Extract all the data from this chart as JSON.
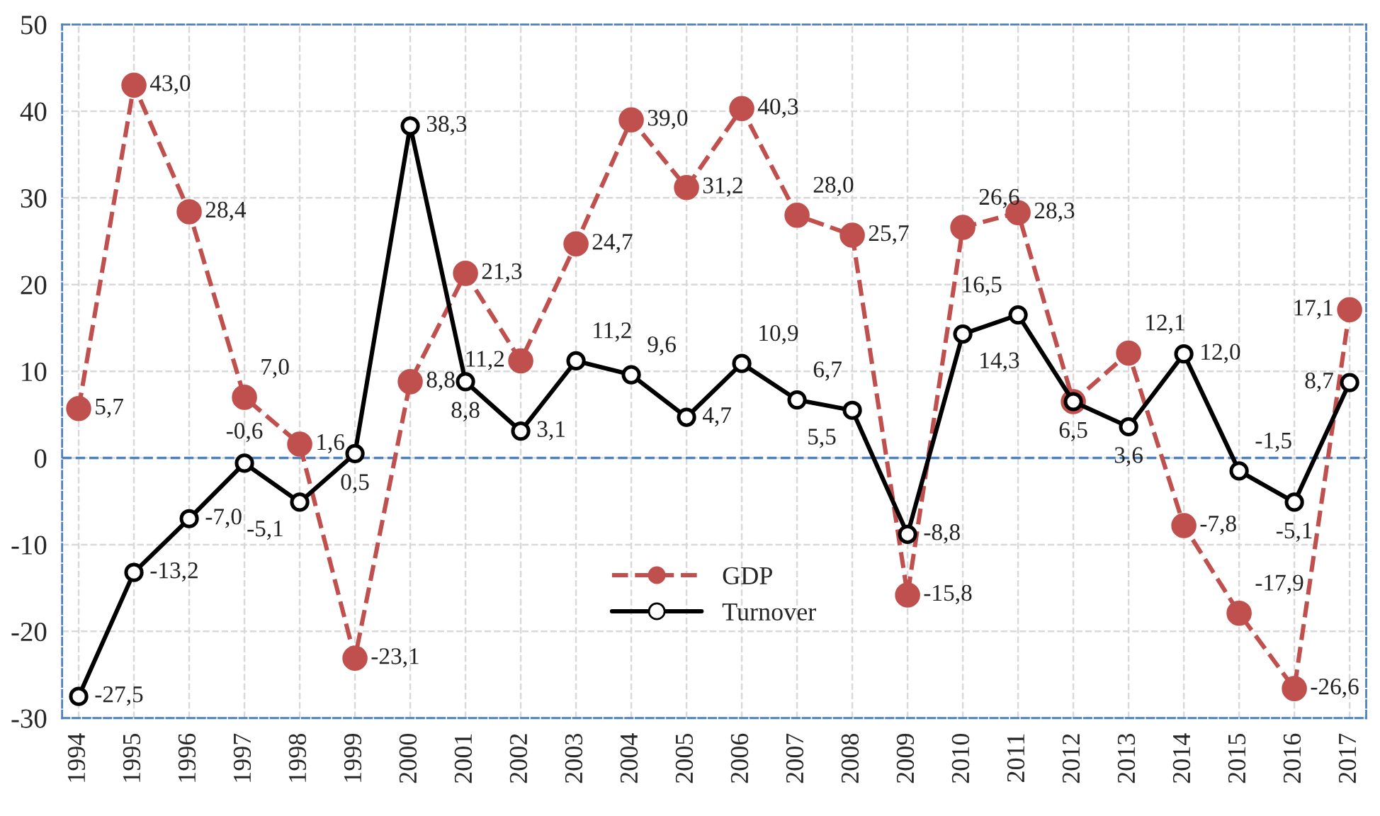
{
  "chart_data": {
    "type": "line",
    "categories": [
      "1994",
      "1995",
      "1996",
      "1997",
      "1998",
      "1999",
      "2000",
      "2001",
      "2002",
      "2003",
      "2004",
      "2005",
      "2006",
      "2007",
      "2008",
      "2009",
      "2010",
      "2011",
      "2012",
      "2013",
      "2014",
      "2015",
      "2016",
      "2017"
    ],
    "series": [
      {
        "name": "GDP",
        "color": "#c0504d",
        "line_style": "dashed",
        "marker": "circle",
        "values": [
          5.7,
          43.0,
          28.4,
          7.0,
          1.6,
          -23.1,
          8.8,
          21.3,
          11.2,
          24.7,
          39.0,
          31.2,
          40.3,
          28.0,
          25.7,
          -15.8,
          26.6,
          28.3,
          6.5,
          12.1,
          -7.8,
          -17.9,
          -26.6,
          17.1
        ],
        "value_labels": [
          "5,7",
          "43,0",
          "28,4",
          "7,0",
          "1,6",
          "-23,1",
          "8,8",
          "21,3",
          "11,2",
          "24,7",
          "39,0",
          "31,2",
          "40,3",
          "28,0",
          "25,7",
          "-15,8",
          "26,6",
          "28,3",
          null,
          "12,1",
          "-7,8",
          "-17,9",
          "-26,6",
          "17,1"
        ]
      },
      {
        "name": "Turnover",
        "color": "#000000",
        "line_style": "solid",
        "marker": "circle",
        "values": [
          -27.5,
          -13.2,
          -7.0,
          -0.6,
          -5.1,
          0.5,
          38.3,
          8.8,
          3.1,
          11.2,
          9.6,
          4.7,
          10.9,
          6.7,
          5.5,
          -8.8,
          14.3,
          16.5,
          6.5,
          3.6,
          12.0,
          -1.5,
          -5.1,
          8.7
        ],
        "value_labels": [
          "-27,5",
          "-13,2",
          "-7,0",
          "-0,6",
          "-5,1",
          "0,5",
          "38,3",
          "8,8",
          "3,1",
          "11,2",
          "9,6",
          "4,7",
          "10,9",
          "6,7",
          "5,5",
          "-8,8",
          "14,3",
          "16,5",
          "6,5",
          "3,6",
          "12,0",
          "-1,5",
          "-5,1",
          "8,7"
        ]
      }
    ],
    "ylim": [
      -30,
      50
    ],
    "yticks": [
      -30,
      -20,
      -10,
      0,
      10,
      20,
      30,
      40,
      50
    ],
    "grid": true,
    "legend": "bottom",
    "ref_lines": [
      {
        "axis": "y",
        "value": 0,
        "color": "#4f81bd",
        "line_style": "dashed"
      }
    ]
  }
}
